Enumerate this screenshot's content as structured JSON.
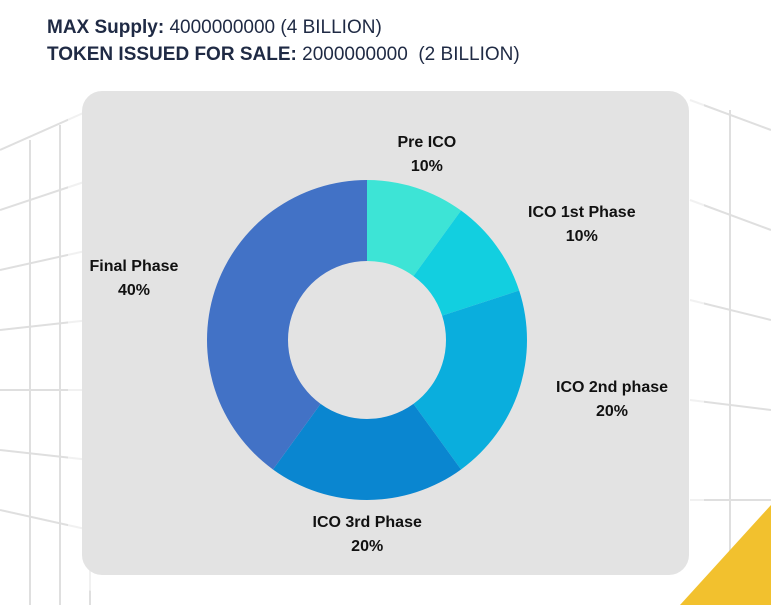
{
  "header": {
    "max_supply_label": "MAX Supply:",
    "max_supply_value": "4000000000 (4 BILLION)",
    "sale_label": "TOKEN ISSUED FOR SALE:",
    "sale_value": "2000000000  (2 BILLION)"
  },
  "chart_data": {
    "type": "pie",
    "donut": true,
    "categories": [
      "Pre ICO",
      "ICO 1st Phase",
      "ICO 2nd phase",
      "ICO 3rd Phase",
      "Final Phase"
    ],
    "values": [
      10,
      10,
      20,
      20,
      40
    ],
    "value_labels": [
      "10%",
      "10%",
      "20%",
      "20%",
      "40%"
    ],
    "colors": [
      "#3de4d6",
      "#12cfe0",
      "#0aaedd",
      "#0a86d0",
      "#4272c6"
    ]
  }
}
